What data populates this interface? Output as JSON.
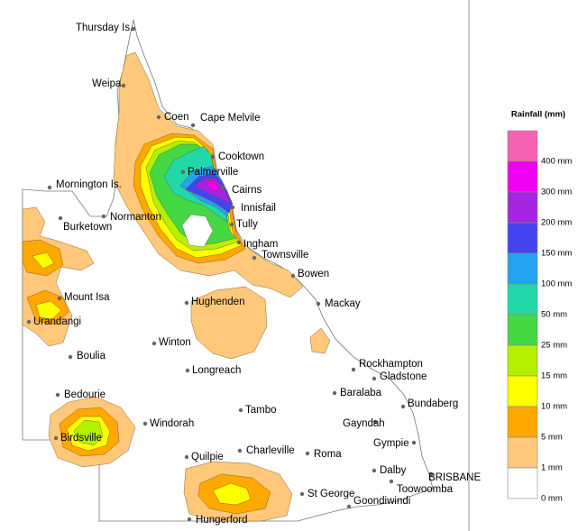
{
  "legend": {
    "title": "Rainfall (mm)",
    "labels": [
      "400 mm",
      "300 mm",
      "200 mm",
      "150 mm",
      "100 mm",
      "50 mm",
      "25 mm",
      "15 mm",
      "10 mm",
      "5 mm",
      "1 mm",
      "0 mm"
    ],
    "colors": [
      "#f462b4",
      "#f000f0",
      "#a424e0",
      "#4444ee",
      "#22a2f0",
      "#22d8a8",
      "#44d844",
      "#b4f000",
      "#ffff00",
      "#ffa800",
      "#ffc87a",
      "#ffffff"
    ]
  },
  "places": [
    "Thursday Is.",
    "Weipa",
    "Coen",
    "Cape Melvile",
    "Cooktown",
    "Palmerville",
    "Mornington Is.",
    "Cairns",
    "Normanton",
    "Burketown",
    "Innisfail",
    "Tully",
    "Ingham",
    "Townsville",
    "Bowen",
    "Mount Isa",
    "Hughenden",
    "Mackay",
    "Urandangi",
    "Winton",
    "Boulia",
    "Longreach",
    "Rockhampton",
    "Gladstone",
    "Baralaba",
    "Bedourie",
    "Bundaberg",
    "Tambo",
    "Windorah",
    "Gayndah",
    "Gympie",
    "Birdsville",
    "Charleville",
    "Roma",
    "Quilpie",
    "Dalby",
    "BRISBANE",
    "Toowoomba",
    "St George",
    "Goondiwindi",
    "Hungerford"
  ]
}
